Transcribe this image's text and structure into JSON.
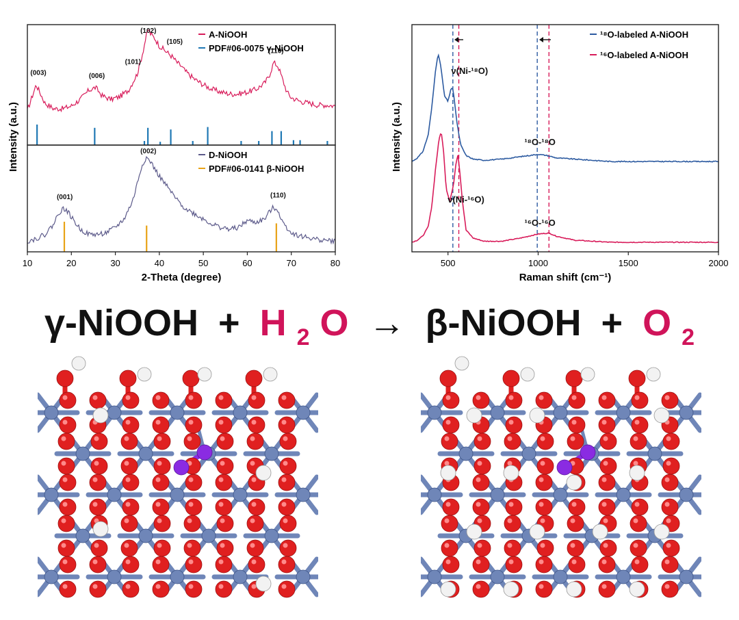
{
  "chart_data": [
    {
      "type": "line",
      "panel": "XRD",
      "ylabel": "Intensity (a.u.)",
      "xlabel": "2-Theta (degree)",
      "xlim": [
        10,
        80
      ],
      "xticks": [
        "10",
        "20",
        "30",
        "40",
        "50",
        "60",
        "70",
        "80"
      ],
      "subplots": [
        {
          "legend": [
            {
              "label": "A-NiOOH",
              "color": "#d81b5a"
            },
            {
              "label": "PDF#06-0075 γ-NiOOH",
              "color": "#1f78b4"
            }
          ],
          "series": [
            {
              "name": "A-NiOOH",
              "color": "#d81b5a",
              "x": [
                10,
                12,
                14,
                16,
                18,
                20,
                22,
                24,
                25.5,
                27,
                29,
                31,
                33,
                35,
                36,
                37,
                37.5,
                38,
                39,
                40,
                41,
                42,
                43,
                44,
                45,
                46,
                48,
                50,
                52,
                54,
                56,
                58,
                60,
                62,
                64,
                65,
                66,
                67,
                68,
                69,
                70,
                72,
                74,
                76,
                78,
                80
              ],
              "y": [
                0.1,
                0.38,
                0.18,
                0.12,
                0.12,
                0.15,
                0.22,
                0.32,
                0.35,
                0.26,
                0.22,
                0.25,
                0.32,
                0.5,
                0.68,
                0.9,
                0.98,
                0.93,
                0.88,
                0.8,
                0.76,
                0.72,
                0.68,
                0.62,
                0.58,
                0.52,
                0.44,
                0.38,
                0.33,
                0.3,
                0.28,
                0.28,
                0.3,
                0.33,
                0.4,
                0.48,
                0.62,
                0.58,
                0.44,
                0.3,
                0.24,
                0.2,
                0.18,
                0.16,
                0.16,
                0.15
              ]
            }
          ],
          "reference_lines": {
            "color": "#1f78b4",
            "x": [
              12.2,
              25.3,
              36.6,
              37.4,
              40.2,
              42.6,
              47.6,
              51.0,
              58.6,
              62.6,
              65.6,
              67.7,
              70.5,
              72.0,
              78.2
            ],
            "height": [
              0.5,
              0.42,
              0.1,
              0.42,
              0.08,
              0.38,
              0.1,
              0.44,
              0.1,
              0.1,
              0.34,
              0.34,
              0.12,
              0.12,
              0.1
            ]
          },
          "peak_labels": [
            {
              "x": 12.5,
              "label": "(003)"
            },
            {
              "x": 25.8,
              "label": "(006)"
            },
            {
              "x": 34.0,
              "label": "(101)"
            },
            {
              "x": 37.5,
              "label": "(102)"
            },
            {
              "x": 43.5,
              "label": "(105)"
            },
            {
              "x": 66.5,
              "label": "(110)"
            }
          ]
        },
        {
          "legend": [
            {
              "label": "D-NiOOH",
              "color": "#5c5a8a"
            },
            {
              "label": "PDF#06-0141 β-NiOOH",
              "color": "#e8a317"
            }
          ],
          "series": [
            {
              "name": "D-NiOOH",
              "color": "#5c5a8a",
              "x": [
                10,
                12,
                14,
                16,
                17,
                18,
                19,
                20,
                22,
                24,
                26,
                28,
                30,
                32,
                34,
                35,
                36,
                37,
                38,
                39,
                40,
                42,
                44,
                46,
                48,
                50,
                52,
                54,
                56,
                58,
                60,
                62,
                64,
                65,
                66,
                67,
                68,
                70,
                72,
                74,
                76,
                78,
                80
              ],
              "y": [
                0.02,
                0.05,
                0.1,
                0.22,
                0.34,
                0.4,
                0.38,
                0.3,
                0.16,
                0.1,
                0.1,
                0.12,
                0.18,
                0.28,
                0.5,
                0.7,
                0.9,
                1.0,
                0.95,
                0.86,
                0.78,
                0.64,
                0.5,
                0.4,
                0.34,
                0.28,
                0.22,
                0.18,
                0.16,
                0.18,
                0.26,
                0.24,
                0.28,
                0.36,
                0.42,
                0.38,
                0.24,
                0.12,
                0.08,
                0.06,
                0.04,
                0.03,
                0.02
              ]
            }
          ],
          "reference_lines": {
            "color": "#e8a317",
            "x": [
              18.4,
              37.1,
              66.6
            ],
            "height": [
              0.55,
              0.48,
              0.52
            ]
          },
          "peak_labels": [
            {
              "x": 18.5,
              "label": "(001)"
            },
            {
              "x": 37.5,
              "label": "(002)"
            },
            {
              "x": 67.0,
              "label": "(110)"
            }
          ]
        }
      ]
    },
    {
      "type": "line",
      "panel": "Raman",
      "ylabel": "Intensity (a.u.)",
      "xlabel": "Raman shift (cm⁻¹)",
      "xlim": [
        300,
        2000
      ],
      "xticks": [
        "500",
        "1000",
        "1500",
        "2000"
      ],
      "legend": [
        {
          "label": "¹⁸O-labeled A-NiOOH",
          "color": "#2c5aa0"
        },
        {
          "label": "¹⁶O-labeled A-NiOOH",
          "color": "#d81b5a"
        }
      ],
      "series": [
        {
          "name": "¹⁸O-labeled A-NiOOH",
          "color": "#2c5aa0",
          "x": [
            300,
            330,
            360,
            390,
            410,
            430,
            445,
            460,
            480,
            500,
            515,
            525,
            535,
            550,
            570,
            600,
            640,
            700,
            800,
            900,
            950,
            1000,
            1050,
            1100,
            1200,
            1400,
            1600,
            1800,
            2000
          ],
          "y": [
            0.0,
            0.03,
            0.08,
            0.22,
            0.45,
            0.75,
            0.9,
            0.8,
            0.55,
            0.5,
            0.6,
            0.62,
            0.52,
            0.32,
            0.14,
            0.05,
            0.02,
            0.01,
            0.02,
            0.04,
            0.05,
            0.06,
            0.05,
            0.03,
            0.02,
            0.0,
            0.0,
            0.0,
            0.0
          ]
        },
        {
          "name": "¹⁶O-labeled A-NiOOH",
          "color": "#d81b5a",
          "x": [
            300,
            330,
            360,
            390,
            410,
            430,
            450,
            462,
            475,
            490,
            510,
            530,
            545,
            555,
            565,
            580,
            600,
            640,
            700,
            800,
            900,
            950,
            1000,
            1060,
            1100,
            1200,
            1400,
            1600,
            1800,
            2000
          ],
          "y": [
            0.0,
            0.02,
            0.06,
            0.15,
            0.35,
            0.7,
            1.0,
            1.08,
            0.9,
            0.52,
            0.4,
            0.55,
            0.78,
            0.85,
            0.7,
            0.4,
            0.12,
            0.04,
            0.01,
            0.01,
            0.04,
            0.06,
            0.08,
            0.09,
            0.06,
            0.02,
            0.0,
            0.0,
            0.0,
            0.0
          ]
        }
      ],
      "vlines": [
        {
          "x": 527,
          "color": "#2c5aa0"
        },
        {
          "x": 560,
          "color": "#d81b5a"
        },
        {
          "x": 995,
          "color": "#2c5aa0"
        },
        {
          "x": 1060,
          "color": "#d81b5a"
        }
      ],
      "annotations": [
        {
          "text": "ν(Ni-¹⁸O)",
          "x": 620
        },
        {
          "text": "¹⁸O-¹⁸O",
          "x": 1010
        },
        {
          "text": "ν(Ni-¹⁶O)",
          "x": 600
        },
        {
          "text": "¹⁶O-¹⁶O",
          "x": 1010
        }
      ]
    }
  ],
  "equation": {
    "reactant": "γ-NiOOH",
    "plus1": "+",
    "water_h": "H",
    "water_sub": "2",
    "water_o": "O",
    "arrow": "→",
    "product": "β-NiOOH",
    "plus2": "+",
    "oxygen": "O",
    "oxygen_sub": "2",
    "black": "#111111",
    "accent": "#d0145a"
  },
  "lattice_colors": {
    "ni": "#6f86b8",
    "o": "#e02020",
    "h": "#f2f2f2",
    "highlight": "#8a2be2"
  }
}
